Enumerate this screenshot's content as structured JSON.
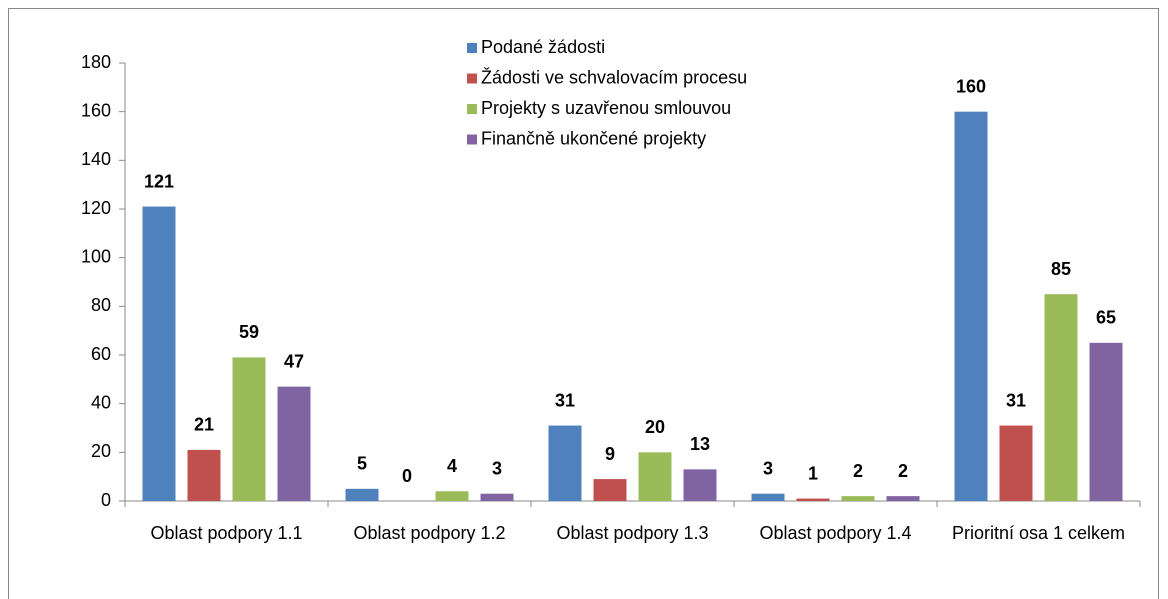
{
  "chart_data": {
    "type": "bar",
    "categories": [
      "Oblast podpory 1.1",
      "Oblast podpory 1.2",
      "Oblast podpory 1.3",
      "Oblast podpory 1.4",
      "Prioritní osa 1 celkem"
    ],
    "series": [
      {
        "name": "Podané žádosti",
        "color": "#4f81bd",
        "values": [
          121,
          5,
          31,
          3,
          160
        ]
      },
      {
        "name": "Žádosti ve schvalovacím procesu",
        "color": "#c0504d",
        "values": [
          21,
          0,
          9,
          1,
          31
        ]
      },
      {
        "name": "Projekty s uzavřenou smlouvou",
        "color": "#9bbb59",
        "values": [
          59,
          4,
          20,
          2,
          85
        ]
      },
      {
        "name": "Finančně ukončené projekty",
        "color": "#8064a2",
        "values": [
          47,
          3,
          13,
          2,
          65
        ]
      }
    ],
    "ylim": [
      0,
      180
    ],
    "yticks": [
      0,
      20,
      40,
      60,
      80,
      100,
      120,
      140,
      160,
      180
    ],
    "legend": "top"
  }
}
